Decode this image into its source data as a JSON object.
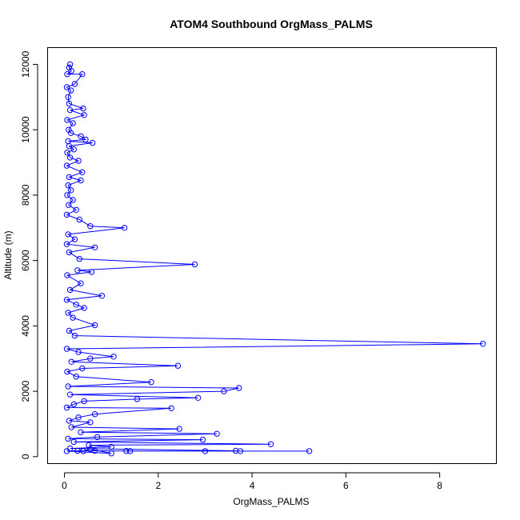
{
  "chart_data": {
    "type": "scatter",
    "title": "ATOM4 Southbound OrgMass_PALMS",
    "xlabel": "OrgMass_PALMS",
    "ylabel": "Altitude (m)",
    "xlim": [
      -0.35,
      9.2
    ],
    "ylim": [
      -200,
      12500
    ],
    "x_ticks": [
      0,
      2,
      4,
      6,
      8
    ],
    "y_ticks": [
      0,
      2000,
      4000,
      6000,
      8000,
      10000,
      12000
    ],
    "grid": false,
    "legend": "none",
    "color": "#0000ff",
    "series": [
      {
        "points": [
          [
            0.12,
            12000
          ],
          [
            0.1,
            11900
          ],
          [
            0.15,
            11800
          ],
          [
            0.06,
            11700
          ],
          [
            0.38,
            11700
          ],
          [
            0.22,
            11400
          ],
          [
            0.05,
            11300
          ],
          [
            0.14,
            11200
          ],
          [
            0.08,
            11000
          ],
          [
            0.1,
            10800
          ],
          [
            0.4,
            10650
          ],
          [
            0.12,
            10600
          ],
          [
            0.42,
            10450
          ],
          [
            0.06,
            10300
          ],
          [
            0.18,
            10200
          ],
          [
            0.09,
            10000
          ],
          [
            0.14,
            9900
          ],
          [
            0.35,
            9800
          ],
          [
            0.45,
            9700
          ],
          [
            0.08,
            9650
          ],
          [
            0.6,
            9600
          ],
          [
            0.1,
            9500
          ],
          [
            0.2,
            9400
          ],
          [
            0.06,
            9300
          ],
          [
            0.12,
            9150
          ],
          [
            0.3,
            9050
          ],
          [
            0.05,
            8900
          ],
          [
            0.38,
            8700
          ],
          [
            0.1,
            8550
          ],
          [
            0.35,
            8450
          ],
          [
            0.08,
            8300
          ],
          [
            0.14,
            8150
          ],
          [
            0.06,
            8000
          ],
          [
            0.18,
            7850
          ],
          [
            0.09,
            7700
          ],
          [
            0.25,
            7550
          ],
          [
            0.05,
            7400
          ],
          [
            0.32,
            7250
          ],
          [
            0.55,
            7050
          ],
          [
            1.28,
            7000
          ],
          [
            0.08,
            6800
          ],
          [
            0.22,
            6650
          ],
          [
            0.05,
            6500
          ],
          [
            0.65,
            6400
          ],
          [
            0.1,
            6250
          ],
          [
            0.32,
            6050
          ],
          [
            2.78,
            5880
          ],
          [
            0.28,
            5700
          ],
          [
            0.58,
            5650
          ],
          [
            0.06,
            5550
          ],
          [
            0.35,
            5300
          ],
          [
            0.12,
            5100
          ],
          [
            0.8,
            4920
          ],
          [
            0.05,
            4800
          ],
          [
            0.25,
            4650
          ],
          [
            0.42,
            4550
          ],
          [
            0.08,
            4400
          ],
          [
            0.18,
            4250
          ],
          [
            0.65,
            4020
          ],
          [
            0.1,
            3850
          ],
          [
            0.22,
            3700
          ],
          [
            8.92,
            3450
          ],
          [
            0.05,
            3300
          ],
          [
            0.3,
            3200
          ],
          [
            1.05,
            3060
          ],
          [
            0.55,
            3000
          ],
          [
            0.15,
            2900
          ],
          [
            2.42,
            2780
          ],
          [
            0.38,
            2700
          ],
          [
            0.06,
            2600
          ],
          [
            0.25,
            2450
          ],
          [
            1.85,
            2280
          ],
          [
            0.08,
            2150
          ],
          [
            3.72,
            2100
          ],
          [
            3.4,
            2000
          ],
          [
            0.12,
            1900
          ],
          [
            2.85,
            1800
          ],
          [
            1.55,
            1760
          ],
          [
            0.42,
            1700
          ],
          [
            0.2,
            1600
          ],
          [
            0.05,
            1500
          ],
          [
            2.28,
            1480
          ],
          [
            0.65,
            1300
          ],
          [
            0.3,
            1200
          ],
          [
            0.1,
            1100
          ],
          [
            0.55,
            1050
          ],
          [
            0.15,
            900
          ],
          [
            2.45,
            850
          ],
          [
            0.35,
            750
          ],
          [
            3.25,
            700
          ],
          [
            0.7,
            600
          ],
          [
            0.08,
            550
          ],
          [
            2.95,
            520
          ],
          [
            0.2,
            450
          ],
          [
            4.4,
            380
          ],
          [
            0.52,
            350
          ],
          [
            1.0,
            300
          ],
          [
            0.12,
            250
          ],
          [
            3.65,
            180
          ],
          [
            3.75,
            170
          ],
          [
            5.22,
            170
          ],
          [
            3.0,
            170
          ],
          [
            1.4,
            170
          ],
          [
            1.32,
            175
          ],
          [
            0.65,
            180
          ],
          [
            0.28,
            180
          ],
          [
            0.05,
            170
          ],
          [
            1.0,
            100
          ],
          [
            0.55,
            230
          ],
          [
            0.4,
            170
          ]
        ]
      }
    ]
  }
}
